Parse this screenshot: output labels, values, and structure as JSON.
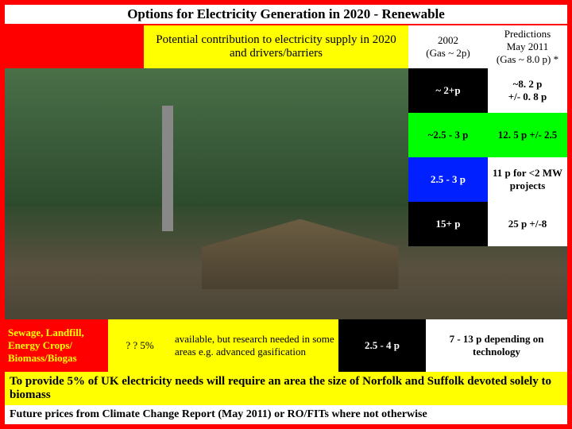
{
  "title": "Options for Electricity Generation in 2020 - Renewable",
  "header": {
    "mid": "Potential contribution to electricity supply in 2020 and drivers/barriers",
    "col1_line1": "2002",
    "col1_line2": "(Gas ~ 2p)",
    "col2_line1": "Predictions",
    "col2_line2": "May 2011",
    "col2_line3": "(Gas ~ 8.0 p) *"
  },
  "prices": [
    {
      "left": "~ 2+p",
      "right": "~8. 2 p\n+/- 0. 8 p",
      "leftBg": "bg-black",
      "rightBg": "bg-white"
    },
    {
      "left": "~2.5 - 3 p",
      "right": "12. 5 p +/- 2.5",
      "leftBg": "bg-green",
      "rightBg": "bg-green"
    },
    {
      "left": "2.5 - 3 p",
      "right": "11 p for <2 MW projects",
      "leftBg": "bg-blue",
      "rightBg": "bg-white"
    },
    {
      "left": "15+ p",
      "right": "25 p +/-8",
      "leftBg": "bg-black",
      "rightBg": "bg-white"
    }
  ],
  "bottomRow": {
    "label": "Sewage, Landfill, Energy Crops/ Biomass/Biogas",
    "pct": "? ? 5%",
    "desc": "available, but research needed in some areas e.g. advanced gasification",
    "price2002": "2.5 - 4 p",
    "pricePred": "7 - 13 p depending on technology"
  },
  "note1": "To provide 5% of UK electricity needs will require an area the size of Norfolk and Suffolk devoted solely to biomass",
  "note2": "Future prices from Climate Change Report (May 2011) or RO/FITs where not otherwise"
}
